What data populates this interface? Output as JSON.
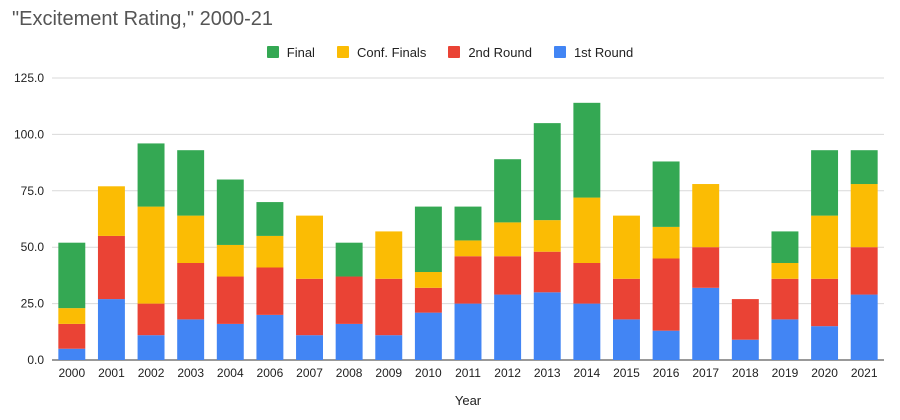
{
  "chart_data": {
    "type": "bar",
    "stacked": true,
    "title": "\"Excitement Rating,\" 2000-21",
    "xlabel": "Year",
    "ylabel": "",
    "ylim": [
      0,
      125
    ],
    "yticks": [
      0,
      25,
      50,
      75,
      100,
      125
    ],
    "ytick_labels": [
      "0.0",
      "25.0",
      "50.0",
      "75.0",
      "100.0",
      "125.0"
    ],
    "grid": true,
    "legend_position": "top",
    "categories": [
      "2000",
      "2001",
      "2002",
      "2003",
      "2004",
      "2006",
      "2007",
      "2008",
      "2009",
      "2010",
      "2011",
      "2012",
      "2013",
      "2014",
      "2015",
      "2016",
      "2017",
      "2018",
      "2019",
      "2020",
      "2021"
    ],
    "legend_order": [
      "Final",
      "Conf. Finals",
      "2nd Round",
      "1st Round"
    ],
    "series": [
      {
        "name": "1st Round",
        "color": "#4285f4",
        "values": [
          5,
          27,
          11,
          18,
          16,
          20,
          11,
          16,
          11,
          21,
          25,
          29,
          30,
          25,
          18,
          13,
          32,
          9,
          18,
          15,
          29
        ]
      },
      {
        "name": "2nd Round",
        "color": "#ea4335",
        "values": [
          11,
          28,
          14,
          25,
          21,
          21,
          25,
          21,
          25,
          11,
          21,
          17,
          18,
          18,
          18,
          32,
          18,
          18,
          18,
          21,
          21
        ]
      },
      {
        "name": "Conf. Finals",
        "color": "#fbbc04",
        "values": [
          7,
          22,
          43,
          21,
          14,
          14,
          28,
          0,
          21,
          7,
          7,
          15,
          14,
          29,
          28,
          14,
          28,
          0,
          7,
          28,
          28
        ]
      },
      {
        "name": "Final",
        "color": "#34a853",
        "values": [
          29,
          0,
          28,
          29,
          29,
          15,
          0,
          15,
          0,
          29,
          15,
          28,
          43,
          42,
          0,
          29,
          0,
          0,
          14,
          29,
          15
        ]
      }
    ]
  }
}
